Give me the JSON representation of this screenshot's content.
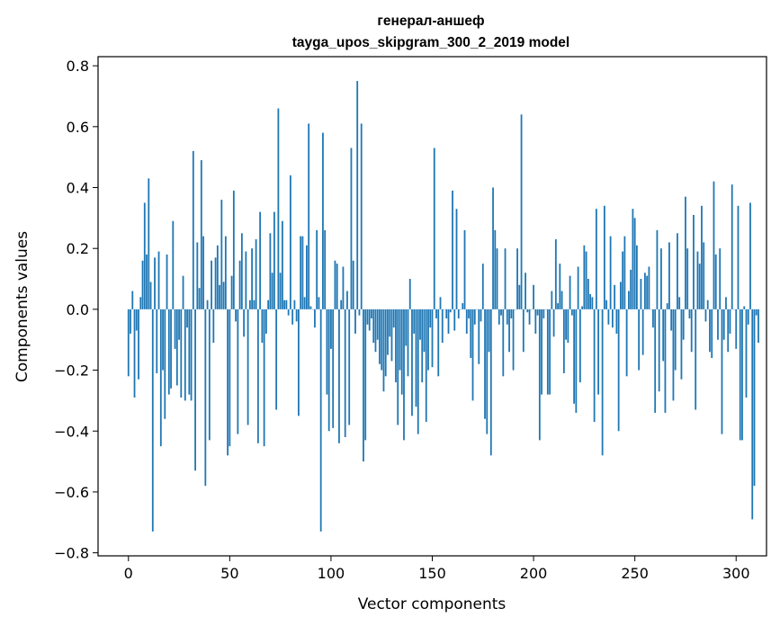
{
  "chart_data": {
    "type": "bar",
    "title": "генерал-аншеф",
    "subtitle": "tayga_upos_skipgram_300_2_2019 model",
    "xlabel": "Vector components",
    "ylabel": "Components values",
    "xlim": [
      -15,
      315
    ],
    "ylim": [
      -0.81,
      0.83
    ],
    "xticks": [
      0,
      50,
      100,
      150,
      200,
      250,
      300
    ],
    "xtick_labels": [
      "0",
      "50",
      "100",
      "150",
      "200",
      "250",
      "300"
    ],
    "yticks": [
      -0.8,
      -0.6,
      -0.4,
      -0.2,
      0.0,
      0.2,
      0.4,
      0.6,
      0.8
    ],
    "ytick_labels": [
      "−0.8",
      "−0.6",
      "−0.4",
      "−0.2",
      "0.0",
      "0.2",
      "0.4",
      "0.6",
      "0.8"
    ],
    "grid": false,
    "bar_color": "#1f77b4",
    "values": [
      -0.22,
      -0.08,
      0.06,
      -0.29,
      -0.07,
      -0.23,
      0.04,
      0.16,
      0.35,
      0.18,
      0.43,
      0.09,
      -0.73,
      0.17,
      -0.21,
      0.19,
      -0.45,
      -0.2,
      -0.36,
      0.18,
      -0.28,
      -0.26,
      0.29,
      -0.13,
      -0.25,
      -0.1,
      -0.29,
      0.11,
      -0.3,
      -0.06,
      -0.28,
      -0.3,
      0.52,
      -0.53,
      0.22,
      0.07,
      0.49,
      0.24,
      -0.58,
      0.03,
      -0.43,
      0.16,
      -0.11,
      0.17,
      0.21,
      0.08,
      0.36,
      0.09,
      0.24,
      -0.48,
      -0.45,
      0.11,
      0.39,
      -0.04,
      -0.41,
      0.16,
      0.25,
      -0.09,
      0.19,
      -0.38,
      0.03,
      0.2,
      0.03,
      0.23,
      -0.44,
      0.32,
      -0.11,
      -0.45,
      -0.08,
      0.03,
      0.25,
      0.12,
      0.32,
      -0.33,
      0.66,
      0.12,
      0.29,
      0.03,
      0.03,
      -0.02,
      0.44,
      -0.05,
      0.03,
      -0.04,
      -0.35,
      0.24,
      0.24,
      0.04,
      0.21,
      0.61,
      0.01,
      0.0,
      -0.06,
      0.26,
      0.04,
      -0.73,
      0.58,
      0.26,
      -0.28,
      -0.4,
      -0.13,
      -0.39,
      0.16,
      0.15,
      -0.44,
      0.03,
      0.14,
      -0.42,
      0.06,
      -0.38,
      0.53,
      0.16,
      -0.08,
      0.75,
      -0.02,
      0.61,
      -0.5,
      -0.43,
      -0.05,
      -0.07,
      -0.03,
      -0.11,
      -0.14,
      -0.1,
      -0.18,
      -0.2,
      -0.27,
      -0.22,
      -0.15,
      -0.09,
      -0.17,
      -0.06,
      -0.24,
      -0.38,
      -0.2,
      -0.28,
      -0.43,
      -0.12,
      -0.22,
      0.1,
      -0.35,
      -0.08,
      -0.32,
      -0.41,
      -0.1,
      -0.24,
      -0.14,
      -0.37,
      -0.2,
      -0.06,
      -0.19,
      0.53,
      -0.03,
      -0.22,
      0.04,
      -0.11,
      0.0,
      -0.03,
      -0.08,
      -0.01,
      0.39,
      -0.07,
      0.33,
      -0.03,
      0.0,
      0.02,
      0.26,
      -0.08,
      -0.03,
      -0.16,
      -0.3,
      -0.05,
      0.0,
      -0.18,
      -0.04,
      0.15,
      -0.36,
      -0.41,
      -0.14,
      -0.48,
      0.4,
      0.26,
      0.2,
      -0.05,
      -0.02,
      -0.22,
      0.2,
      -0.05,
      -0.14,
      -0.03,
      -0.2,
      0.0,
      0.2,
      0.08,
      0.64,
      -0.14,
      0.12,
      -0.01,
      -0.05,
      0.0,
      0.08,
      -0.08,
      -0.02,
      -0.43,
      -0.28,
      -0.03,
      0.0,
      -0.28,
      -0.28,
      0.06,
      -0.09,
      0.23,
      0.02,
      0.15,
      0.06,
      -0.21,
      -0.1,
      -0.11,
      0.11,
      -0.02,
      -0.31,
      -0.34,
      0.14,
      -0.24,
      0.01,
      0.21,
      0.19,
      0.1,
      0.05,
      0.04,
      -0.37,
      0.33,
      -0.28,
      0.0,
      -0.48,
      0.34,
      0.03,
      -0.05,
      0.24,
      -0.06,
      0.08,
      -0.08,
      -0.4,
      0.09,
      0.19,
      0.24,
      -0.22,
      0.06,
      0.13,
      0.33,
      0.3,
      0.21,
      -0.2,
      0.1,
      -0.15,
      0.12,
      0.11,
      0.14,
      0.0,
      -0.06,
      -0.34,
      0.26,
      -0.27,
      0.2,
      -0.17,
      -0.34,
      0.02,
      0.22,
      -0.07,
      -0.3,
      -0.2,
      0.25,
      0.04,
      -0.23,
      -0.1,
      0.37,
      0.2,
      -0.03,
      -0.14,
      0.31,
      -0.33,
      0.19,
      0.15,
      0.34,
      0.22,
      -0.04,
      0.03,
      -0.14,
      -0.16,
      0.42,
      0.18,
      -0.1,
      0.2,
      -0.41,
      -0.1,
      0.04,
      -0.14,
      -0.08,
      0.41,
      0.0,
      -0.13,
      0.34,
      -0.43,
      -0.43,
      0.01,
      -0.29,
      -0.05,
      0.35,
      -0.69,
      -0.58,
      -0.02,
      -0.11
    ]
  }
}
